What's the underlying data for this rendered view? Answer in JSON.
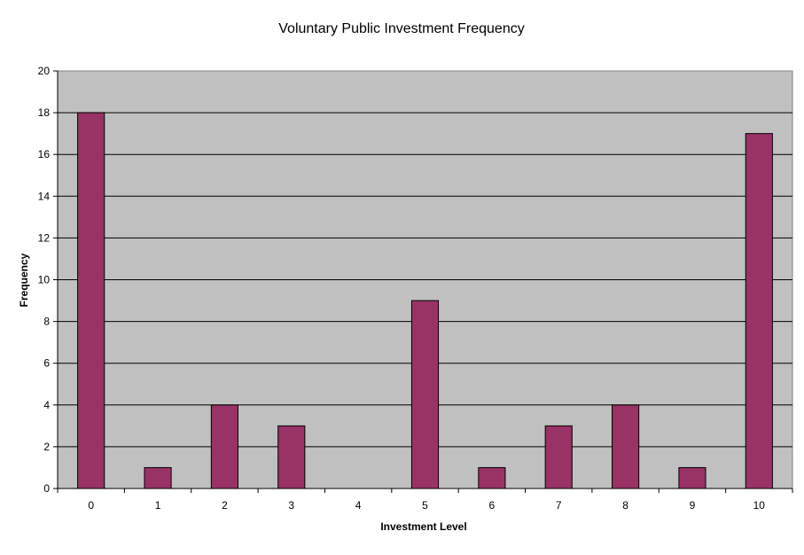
{
  "chart_data": {
    "type": "bar",
    "title": "Voluntary Public Investment Frequency",
    "xlabel": "Investment Level",
    "ylabel": "Frequency",
    "categories": [
      "0",
      "1",
      "2",
      "3",
      "4",
      "5",
      "6",
      "7",
      "8",
      "9",
      "10"
    ],
    "values": [
      18,
      1,
      4,
      3,
      0,
      9,
      1,
      3,
      4,
      1,
      17
    ],
    "ylim": [
      0,
      20
    ],
    "yticks": [
      "0",
      "2",
      "4",
      "6",
      "8",
      "10",
      "12",
      "14",
      "16",
      "18",
      "20"
    ],
    "grid": true,
    "legend": "none",
    "colors": {
      "bar": "#993366",
      "plot_background": "#C0C0C0",
      "gridline": "#000000"
    }
  }
}
